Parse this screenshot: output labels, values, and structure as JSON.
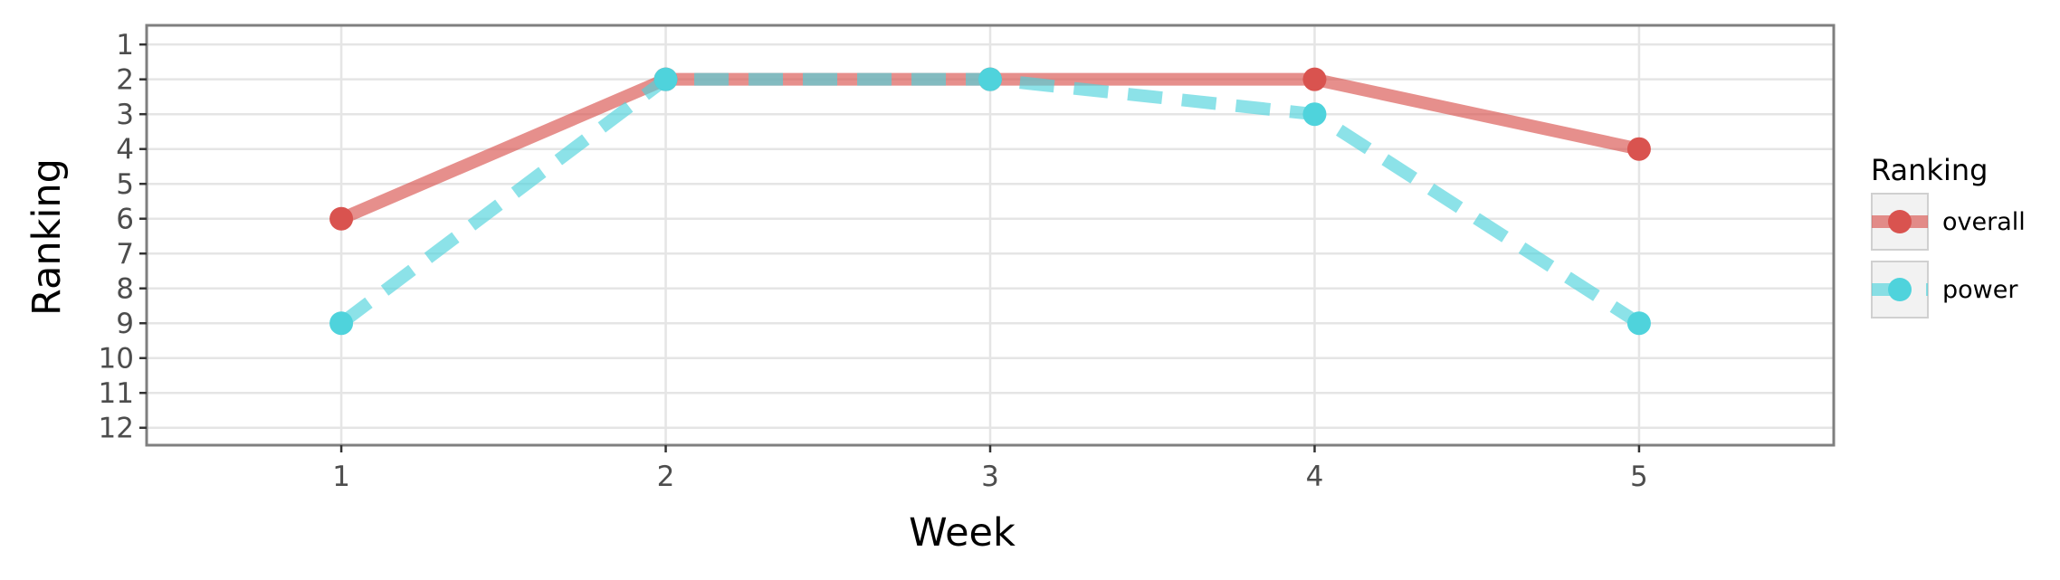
{
  "chart_data": {
    "type": "line",
    "x": [
      1,
      2,
      3,
      4,
      5
    ],
    "x_ticks": [
      "1",
      "2",
      "3",
      "4",
      "5"
    ],
    "xlim": [
      0.4,
      5.6
    ],
    "y_ticks": [
      "1",
      "2",
      "3",
      "4",
      "5",
      "6",
      "7",
      "8",
      "9",
      "10",
      "11",
      "12"
    ],
    "ylim": [
      12.5,
      0.45
    ],
    "y_reversed": true,
    "xlabel": "Week",
    "ylabel": "Ranking",
    "grid": true,
    "legend": {
      "title": "Ranking",
      "placement": "right"
    },
    "series": [
      {
        "name": "overall",
        "values": [
          6,
          2,
          2,
          2,
          4
        ],
        "color": "#d9534f",
        "line_style": "solid"
      },
      {
        "name": "power",
        "values": [
          9,
          2,
          2,
          3,
          9
        ],
        "color": "#4fd3dc",
        "line_style": "dashed"
      }
    ]
  }
}
